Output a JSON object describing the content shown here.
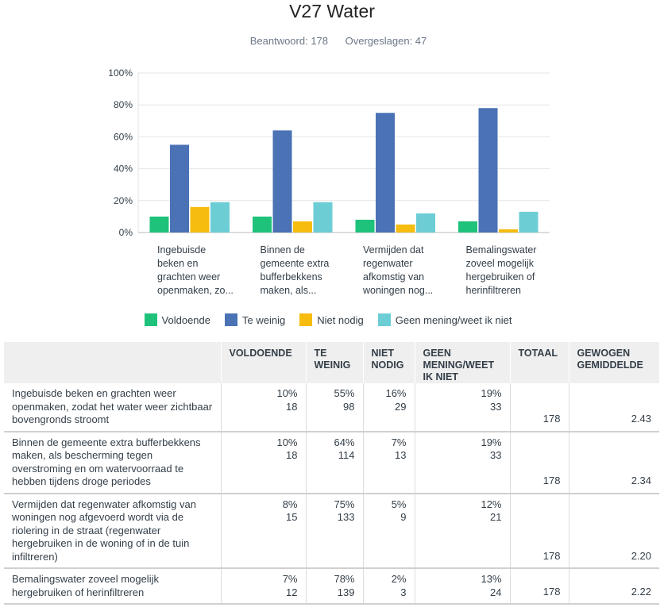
{
  "title": "V27 Water",
  "stats": {
    "answered": "Beantwoord: 178",
    "skipped": "Overgeslagen: 47"
  },
  "chart_data": {
    "type": "bar",
    "ylim": [
      0,
      100
    ],
    "yticks": [
      "0%",
      "20%",
      "40%",
      "60%",
      "80%",
      "100%"
    ],
    "grid": true,
    "legend_position": "bottom",
    "categories": [
      [
        "Ingebuisde",
        "beken en",
        "grachten weer",
        "openmaken, zo..."
      ],
      [
        "Binnen de",
        "gemeente extra",
        "bufferbekkens",
        "maken, als..."
      ],
      [
        "Vermijden dat",
        "regenwater",
        "afkomstig van",
        "woningen nog..."
      ],
      [
        "Bemalingswater",
        "zoveel mogelijk",
        "hergebruiken of",
        "herinfiltreren"
      ]
    ],
    "series": [
      {
        "name": "Voldoende",
        "color": "#1ec27a",
        "values": [
          10,
          10,
          8,
          7
        ]
      },
      {
        "name": "Te weinig",
        "color": "#4a72b5",
        "values": [
          55,
          64,
          75,
          78
        ]
      },
      {
        "name": "Niet nodig",
        "color": "#f7bc10",
        "values": [
          16,
          7,
          5,
          2
        ]
      },
      {
        "name": "Geen mening/weet ik niet",
        "color": "#6ccdd5",
        "values": [
          19,
          19,
          12,
          13
        ]
      }
    ]
  },
  "table": {
    "headers": [
      "",
      "VOLDOENDE",
      "TE WEINIG",
      "NIET NODIG",
      "GEEN MENING/WEET IK NIET",
      "TOTAAL",
      "GEWOGEN GEMIDDELDE"
    ],
    "rows": [
      {
        "label": "Ingebuisde beken en grachten weer openmaken, zodat het water weer zichtbaar bovengronds stroomt",
        "cells": [
          [
            "10%",
            "18"
          ],
          [
            "55%",
            "98"
          ],
          [
            "16%",
            "29"
          ],
          [
            "19%",
            "33"
          ]
        ],
        "total": "178",
        "avg": "2.43"
      },
      {
        "label": "Binnen de gemeente extra bufferbekkens maken, als bescherming tegen overstroming en om watervoorraad te hebben tijdens droge periodes",
        "cells": [
          [
            "10%",
            "18"
          ],
          [
            "64%",
            "114"
          ],
          [
            "7%",
            "13"
          ],
          [
            "19%",
            "33"
          ]
        ],
        "total": "178",
        "avg": "2.34"
      },
      {
        "label": "Vermijden dat regenwater afkomstig van woningen nog afgevoerd wordt via de riolering in de straat (regenwater hergebruiken in de woning of in de tuin infiltreren)",
        "cells": [
          [
            "8%",
            "15"
          ],
          [
            "75%",
            "133"
          ],
          [
            "5%",
            "9"
          ],
          [
            "12%",
            "21"
          ]
        ],
        "total": "178",
        "avg": "2.20"
      },
      {
        "label": "Bemalingswater zoveel mogelijk hergebruiken of herinfiltreren",
        "cells": [
          [
            "7%",
            "12"
          ],
          [
            "78%",
            "139"
          ],
          [
            "2%",
            "3"
          ],
          [
            "13%",
            "24"
          ]
        ],
        "total": "178",
        "avg": "2.22"
      }
    ]
  }
}
